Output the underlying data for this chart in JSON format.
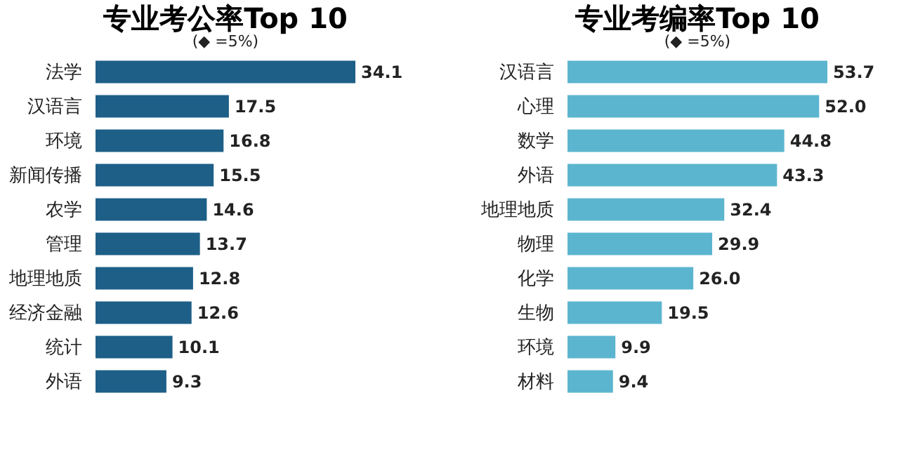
{
  "chart_data": [
    {
      "type": "bar",
      "orientation": "horizontal",
      "title": "专业考公率Top 10",
      "annotations": [
        "(◆ =5%)"
      ],
      "categories": [
        "法学",
        "汉语言",
        "环境",
        "新闻传播",
        "农学",
        "管理",
        "地理地质",
        "经济金融",
        "统计",
        "外语"
      ],
      "values": [
        34.1,
        17.5,
        16.8,
        15.5,
        14.6,
        13.7,
        12.8,
        12.6,
        10.1,
        9.3
      ],
      "color": "#1d5f87",
      "data_labels": true,
      "tick_labels": "y"
    },
    {
      "type": "bar",
      "orientation": "horizontal",
      "title": "专业考编率Top 10",
      "annotations": [
        "(◆ =5%)"
      ],
      "categories": [
        "汉语言",
        "心理",
        "数学",
        "外语",
        "地理地质",
        "物理",
        "化学",
        "生物",
        "环境",
        "材料"
      ],
      "values": [
        53.7,
        52.0,
        44.8,
        43.3,
        32.4,
        29.9,
        26.0,
        19.5,
        9.9,
        9.4
      ],
      "color": "#5cb5cf",
      "value_labels": [
        "53.7",
        "52.0",
        "44.8",
        "43.3",
        "32.4",
        "29.9",
        "26.0",
        "19.5",
        "9.9",
        "9.4"
      ],
      "tick_labels": "y"
    }
  ]
}
